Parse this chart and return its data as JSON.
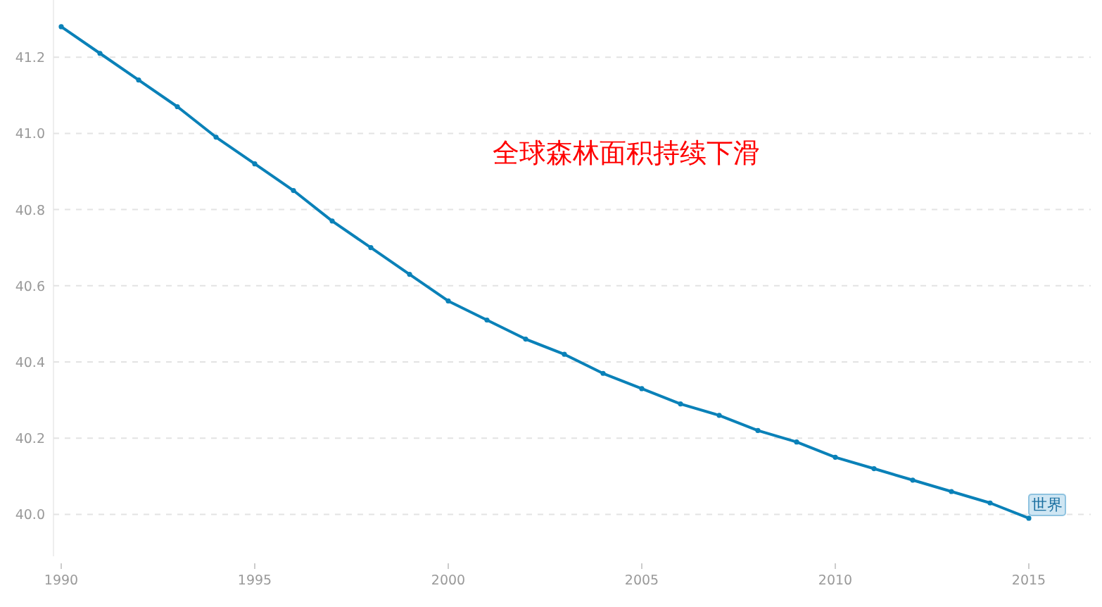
{
  "chart_data": {
    "type": "line",
    "title": "全球森林面积持续下滑",
    "x": [
      1990,
      1991,
      1992,
      1993,
      1994,
      1995,
      1996,
      1997,
      1998,
      1999,
      2000,
      2001,
      2002,
      2003,
      2004,
      2005,
      2006,
      2007,
      2008,
      2009,
      2010,
      2011,
      2012,
      2013,
      2014,
      2015
    ],
    "series": [
      {
        "name": "世界",
        "color": "#0a81b8",
        "values": [
          41.28,
          41.21,
          41.14,
          41.07,
          40.99,
          40.92,
          40.85,
          40.77,
          40.7,
          40.63,
          40.56,
          40.51,
          40.46,
          40.42,
          40.37,
          40.33,
          40.29,
          40.26,
          40.22,
          40.19,
          40.15,
          40.12,
          40.09,
          40.06,
          40.03,
          39.99
        ]
      }
    ],
    "xlim": [
      1989.8,
      2016.6
    ],
    "xticks": [
      1990,
      1995,
      2000,
      2005,
      2010,
      2015
    ],
    "ylim": [
      39.89,
      41.35
    ],
    "yticks": [
      {
        "value": 40,
        "label": "40.0"
      },
      40.2,
      40.4,
      40.6,
      40.8,
      {
        "value": 41,
        "label": "41.0"
      },
      41.2
    ],
    "grid": "y",
    "marker": "circle",
    "line_style": "solid",
    "legend": false
  }
}
